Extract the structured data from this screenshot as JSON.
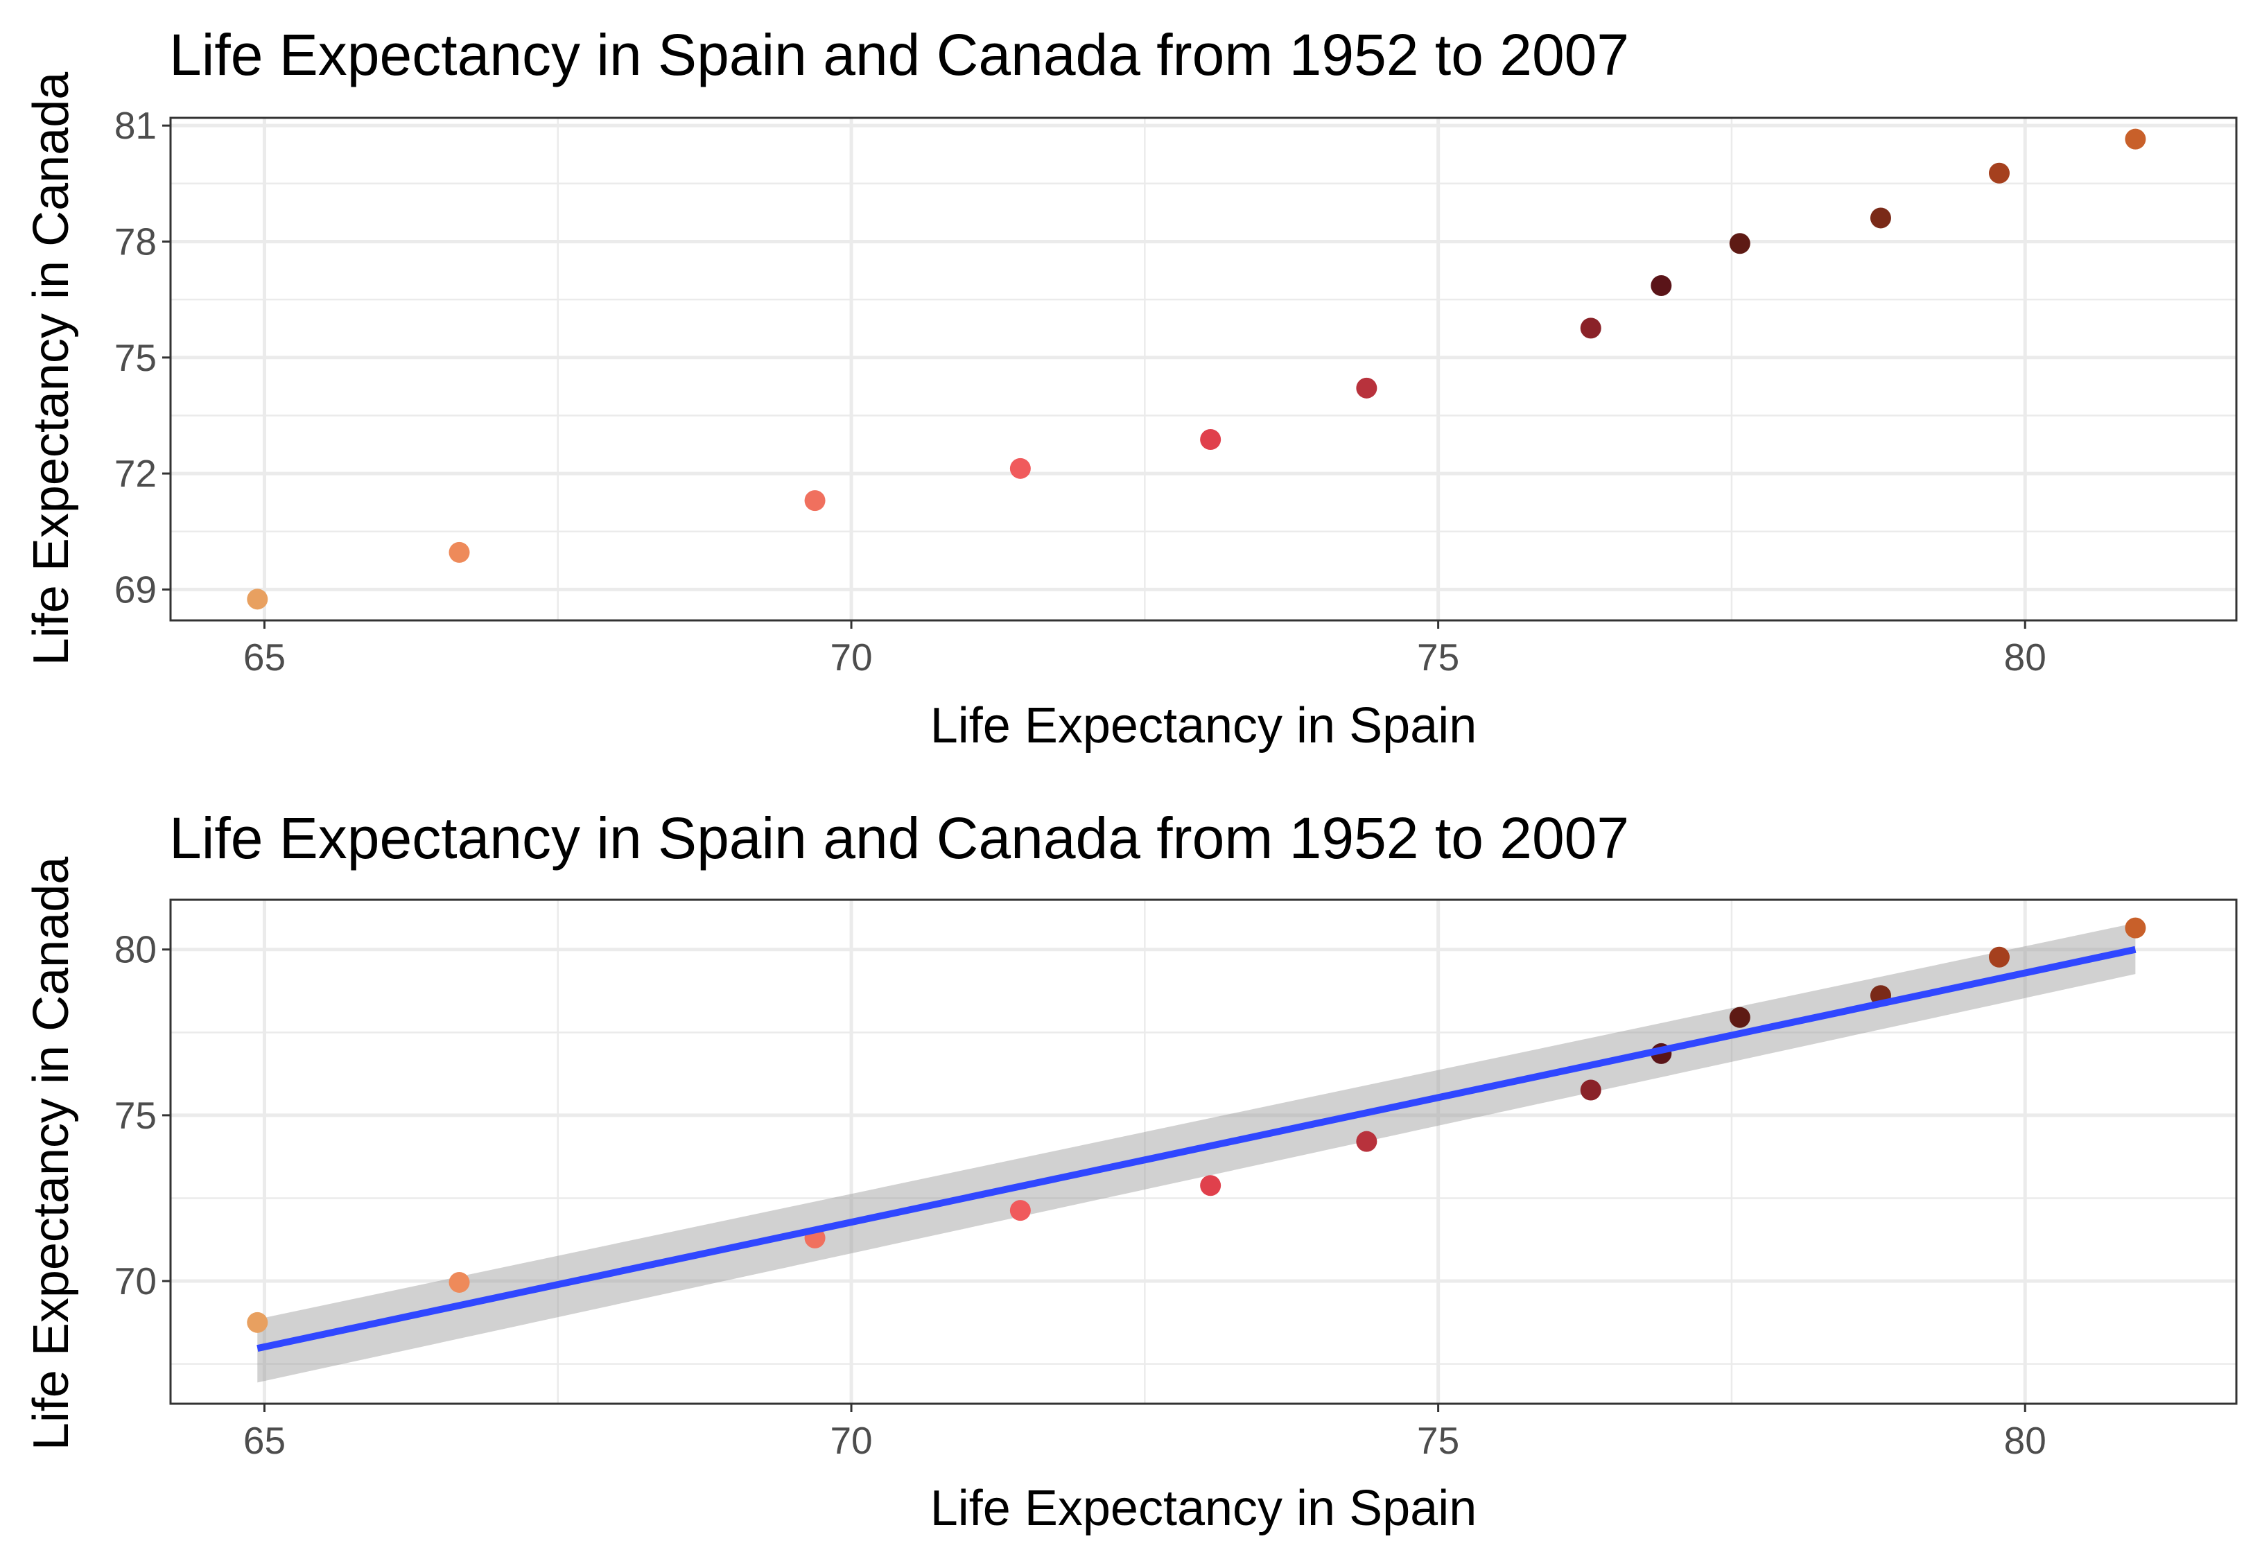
{
  "colors": {
    "trend_line": "#3047ff",
    "confidence_band": "#999999",
    "grid": "#ebebeb",
    "panel_border": "#333333",
    "tick_text": "#4d4d4d",
    "text": "#000000"
  },
  "chart_data": [
    {
      "type": "scatter",
      "title": "Life Expectancy in Spain and Canada from 1952 to 2007",
      "xlabel": "Life Expectancy in Spain",
      "ylabel": "Life Expectancy in Canada",
      "xlim": [
        64.2,
        81.8
      ],
      "ylim": [
        68.2,
        81.2
      ],
      "x_ticks": [
        65,
        70,
        75,
        80
      ],
      "y_ticks": [
        69,
        72,
        75,
        78,
        81
      ],
      "grid": true,
      "legend": "none",
      "points": [
        {
          "x": 64.94,
          "y": 68.75,
          "color": "#e8a060"
        },
        {
          "x": 66.66,
          "y": 69.96,
          "color": "#ee8a5a"
        },
        {
          "x": 69.69,
          "y": 71.3,
          "color": "#f0705e"
        },
        {
          "x": 71.44,
          "y": 72.13,
          "color": "#f05a5c"
        },
        {
          "x": 73.06,
          "y": 72.88,
          "color": "#e0404c"
        },
        {
          "x": 74.39,
          "y": 74.21,
          "color": "#b8323c"
        },
        {
          "x": 76.3,
          "y": 75.76,
          "color": "#8a2228"
        },
        {
          "x": 76.9,
          "y": 76.86,
          "color": "#5a1418"
        },
        {
          "x": 77.57,
          "y": 77.95,
          "color": "#5e1a14"
        },
        {
          "x": 78.77,
          "y": 78.61,
          "color": "#7a2a18"
        },
        {
          "x": 79.78,
          "y": 79.77,
          "color": "#a5401e"
        },
        {
          "x": 80.94,
          "y": 80.65,
          "color": "#c8602a"
        }
      ]
    },
    {
      "type": "scatter",
      "title": "Life Expectancy in Spain and Canada from 1952 to 2007",
      "xlabel": "Life Expectancy in Spain",
      "ylabel": "Life Expectancy in Canada",
      "xlim": [
        64.2,
        81.8
      ],
      "ylim": [
        66.3,
        81.5
      ],
      "x_ticks": [
        65,
        70,
        75,
        80
      ],
      "y_ticks": [
        70,
        75,
        80
      ],
      "grid": true,
      "legend": "none",
      "trend": {
        "method": "linear",
        "x_start": 64.94,
        "x_end": 80.94,
        "y_start": 67.97,
        "y_end": 80.0,
        "band_lower": [
          66.94,
          79.26
        ],
        "band_upper": [
          68.85,
          80.8
        ]
      },
      "points": [
        {
          "x": 64.94,
          "y": 68.75,
          "color": "#e8a060"
        },
        {
          "x": 66.66,
          "y": 69.96,
          "color": "#ee8a5a"
        },
        {
          "x": 69.69,
          "y": 71.3,
          "color": "#f0705e"
        },
        {
          "x": 71.44,
          "y": 72.13,
          "color": "#f05a5c"
        },
        {
          "x": 73.06,
          "y": 72.88,
          "color": "#e0404c"
        },
        {
          "x": 74.39,
          "y": 74.21,
          "color": "#b8323c"
        },
        {
          "x": 76.3,
          "y": 75.76,
          "color": "#8a2228"
        },
        {
          "x": 76.9,
          "y": 76.86,
          "color": "#5a1418"
        },
        {
          "x": 77.57,
          "y": 77.95,
          "color": "#5e1a14"
        },
        {
          "x": 78.77,
          "y": 78.61,
          "color": "#7a2a18"
        },
        {
          "x": 79.78,
          "y": 79.77,
          "color": "#a5401e"
        },
        {
          "x": 80.94,
          "y": 80.65,
          "color": "#c8602a"
        }
      ]
    }
  ]
}
